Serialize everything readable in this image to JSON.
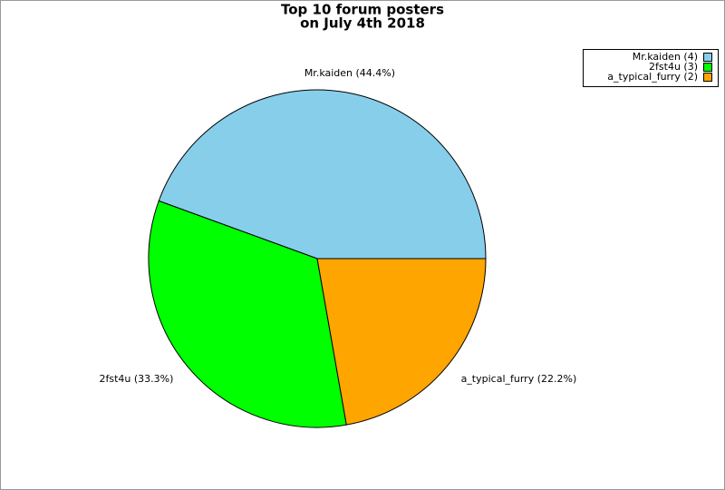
{
  "chart_data": {
    "type": "pie",
    "title": [
      "Top 10 forum posters",
      "on July 4th 2018"
    ],
    "categories": [
      "Mr.kaiden",
      "2fst4u",
      "a_typical_furry"
    ],
    "values": [
      4,
      3,
      2
    ],
    "value_labels": [
      "Mr.kaiden (44.4%)",
      "2fst4u (33.3%)",
      "a_typical_furry (22.2%)"
    ],
    "legend_labels": [
      "Mr.kaiden (4)",
      "2fst4u (3)",
      "a_typical_furry (2)"
    ],
    "colors": [
      "#87ceeb",
      "#00ff00",
      "#ffa500"
    ],
    "legend": "top-right"
  }
}
